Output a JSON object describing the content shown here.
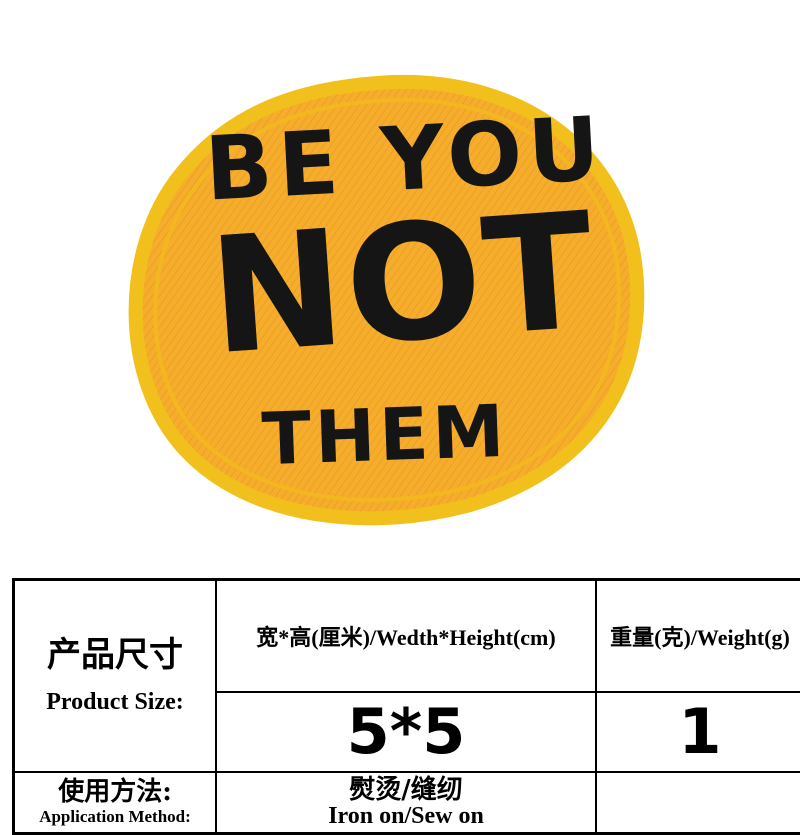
{
  "colors": {
    "patch_fill": "#f7ad2c",
    "patch_border": "#f2c01c",
    "stitch_text": "#151515",
    "table_border": "#000000"
  },
  "patch": {
    "line1": "BE YOU",
    "line2": "NOT",
    "line3": "THEM"
  },
  "table": {
    "size_label_cn": "产品尺寸",
    "size_label_en": "Product Size:",
    "dimension_header": "宽*高(厘米)/Wedth*Height(cm)",
    "weight_header": "重量(克)/Weight(g)",
    "dimension_value": "5*5",
    "weight_value": "1",
    "method_label_cn": "使用方法:",
    "method_label_en": "Application Method:",
    "method_value_cn": "熨烫/缝纫",
    "method_value_en": "Iron on/Sew on",
    "method_extra": ""
  }
}
